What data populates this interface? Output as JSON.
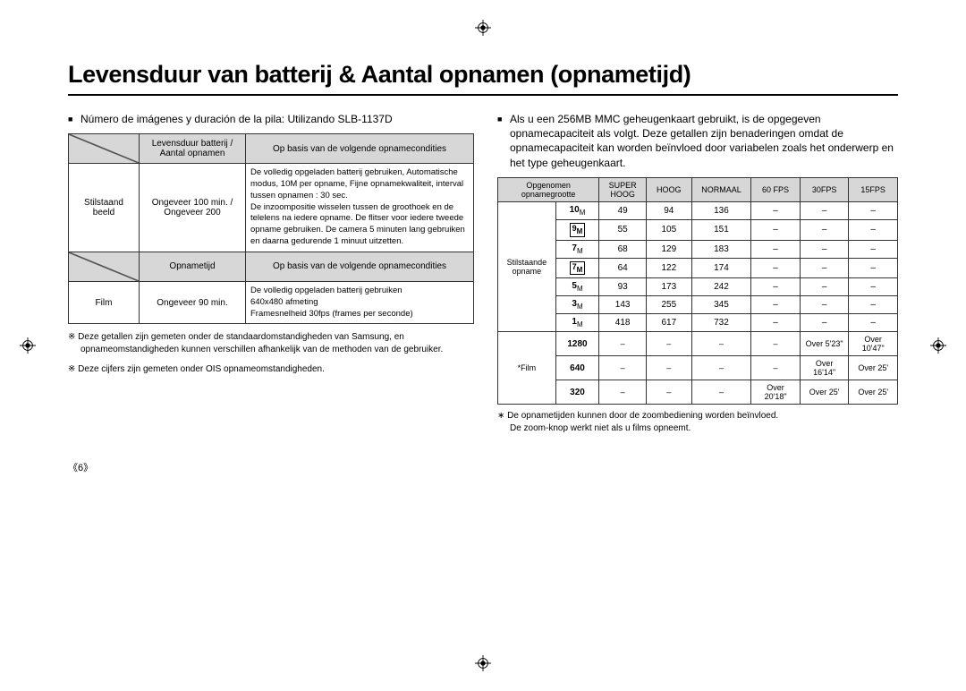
{
  "title": "Levensduur van batterij & Aantal opnamen (opnametijd)",
  "left": {
    "lead": "Número de imágenes y duración de la pila: Utilizando SLB-1137D",
    "hdr1a": "Levensduur batterij / Aantal opnamen",
    "hdr1b": "Op basis van de volgende opnamecondities",
    "row1_cat": "Stilstaand beeld",
    "row1_val": "Ongeveer 100 min. / Ongeveer 200",
    "row1_cond": "De volledig opgeladen batterij gebruiken, Automatische modus, 10M per opname, Fijne opnamekwaliteit, interval tussen opnamen : 30 sec.\nDe inzoompositie wisselen tussen de groothoek en de telelens na iedere opname. De flitser voor iedere tweede opname gebruiken. De camera 5 minuten lang gebruiken en daarna gedurende 1 minuut uitzetten.",
    "hdr2a": "Opnametijd",
    "hdr2b": "Op basis van de volgende opnamecondities",
    "row2_cat": "Film",
    "row2_val": "Ongeveer 90 min.",
    "row2_cond": "De volledig opgeladen batterij gebruiken\n640x480 afmeting\nFramesnelheid 30fps (frames per seconde)",
    "note1": "Deze getallen zijn gemeten onder de standaardomstandigheden van Samsung, en opnameomstandigheden kunnen verschillen afhankelijk van de methoden van de gebruiker.",
    "note2": "Deze cijfers zijn gemeten onder OIS opnameomstandigheden."
  },
  "right": {
    "lead": "Als u een 256MB MMC geheugenkaart gebruikt, is de opgegeven opnamecapaciteit als volgt. Deze getallen zijn benaderingen omdat de opnamecapaciteit kan worden beïnvloed door variabelen zoals het onderwerp en het type geheugenkaart.",
    "cols": [
      "Opgenomen opnamegrootte",
      "SUPER HOOG",
      "HOOG",
      "NORMAAL",
      "60 FPS",
      "30FPS",
      "15FPS"
    ],
    "group_still": "Stilstaande opname",
    "group_film": "*Film",
    "still": [
      {
        "label": "10",
        "sub": "M",
        "sh": "49",
        "h": "94",
        "n": "136",
        "fps60": "–",
        "fps30": "–",
        "fps15": "–"
      },
      {
        "label": "9",
        "sub": "M",
        "boxed": true,
        "sh": "55",
        "h": "105",
        "n": "151",
        "fps60": "–",
        "fps30": "–",
        "fps15": "–"
      },
      {
        "label": "7",
        "sub": "M",
        "sh": "68",
        "h": "129",
        "n": "183",
        "fps60": "–",
        "fps30": "–",
        "fps15": "–"
      },
      {
        "label": "7",
        "sub": "M",
        "boxed": true,
        "sh": "64",
        "h": "122",
        "n": "174",
        "fps60": "–",
        "fps30": "–",
        "fps15": "–"
      },
      {
        "label": "5",
        "sub": "M",
        "sh": "93",
        "h": "173",
        "n": "242",
        "fps60": "–",
        "fps30": "–",
        "fps15": "–"
      },
      {
        "label": "3",
        "sub": "M",
        "sh": "143",
        "h": "255",
        "n": "345",
        "fps60": "–",
        "fps30": "–",
        "fps15": "–"
      },
      {
        "label": "1",
        "sub": "M",
        "sh": "418",
        "h": "617",
        "n": "732",
        "fps60": "–",
        "fps30": "–",
        "fps15": "–"
      }
    ],
    "film": [
      {
        "label": "1280",
        "sh": "–",
        "h": "–",
        "n": "–",
        "fps60": "–",
        "fps30": "Over 5'23\"",
        "fps15": "Over 10'47\""
      },
      {
        "label": "640",
        "sh": "–",
        "h": "–",
        "n": "–",
        "fps60": "–",
        "fps30": "Over 16'14\"",
        "fps15": "Over 25'"
      },
      {
        "label": "320",
        "sh": "–",
        "h": "–",
        "n": "–",
        "fps60": "Over 20'18\"",
        "fps30": "Over 25'",
        "fps15": "Over 25'"
      }
    ],
    "note1": "De opnametijden kunnen door de zoombediening worden beïnvloed.",
    "note2": "De zoom-knop werkt niet als u films opneemt."
  },
  "pagenum": "《6》"
}
